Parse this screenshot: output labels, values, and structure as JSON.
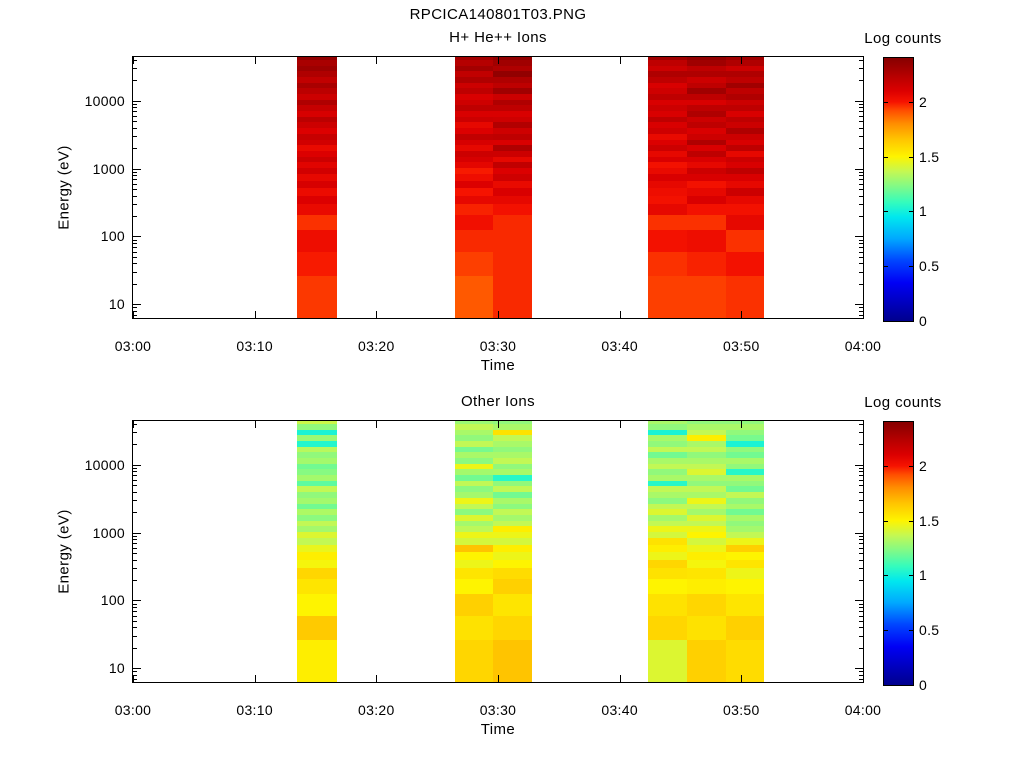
{
  "page_title": "RPCICA140801T03.PNG",
  "colormap": {
    "max_value": 2.4,
    "stops": [
      [
        0.0,
        "#00008d"
      ],
      [
        0.35,
        "#0000f5"
      ],
      [
        0.55,
        "#0045ff"
      ],
      [
        0.75,
        "#00a8ff"
      ],
      [
        0.95,
        "#00e8ee"
      ],
      [
        1.08,
        "#33fcbe"
      ],
      [
        1.22,
        "#7dfa8a"
      ],
      [
        1.36,
        "#c2f855"
      ],
      [
        1.5,
        "#fef400"
      ],
      [
        1.66,
        "#ffc400"
      ],
      [
        1.8,
        "#ff8e00"
      ],
      [
        1.92,
        "#ff4e00"
      ],
      [
        2.0,
        "#f61300"
      ],
      [
        2.1,
        "#dc0000"
      ],
      [
        2.22,
        "#bb0000"
      ],
      [
        2.32,
        "#9d0000"
      ],
      [
        2.4,
        "#870000"
      ]
    ]
  },
  "chart_data": [
    {
      "type": "heatmap",
      "title": "H+ He++ Ions",
      "xlabel": "Time",
      "ylabel": "Energy (eV)",
      "x_tick_labels": [
        "03:00",
        "03:10",
        "03:20",
        "03:30",
        "03:40",
        "03:50",
        "04:00"
      ],
      "x_tick_minutes": [
        0,
        10,
        20,
        30,
        40,
        50,
        60
      ],
      "x_range_minutes": [
        0,
        60
      ],
      "y_scale": "log",
      "y_tick_values_ev": [
        10,
        100,
        1000,
        10000
      ],
      "y_range_ev": [
        6.3,
        44000
      ],
      "colorbar": {
        "title": "Log counts",
        "tick_values": [
          0,
          0.5,
          1,
          1.5,
          2
        ],
        "range": [
          0,
          2.4
        ]
      },
      "energy_bin_edges_ev": [
        6.3,
        26,
        60,
        125,
        210,
        300,
        400,
        520,
        660,
        820,
        1010,
        1230,
        1500,
        1820,
        2210,
        2680,
        3250,
        3940,
        4780,
        5800,
        7030,
        8520,
        10330,
        12520,
        15180,
        18400,
        22300,
        27000,
        32700,
        39600,
        44000
      ],
      "columns": [
        {
          "t_start_min": 13.5,
          "t_end_min": 16.8,
          "log_counts": [
            1.95,
            1.99,
            2.03,
            1.96,
            2.05,
            2.1,
            2.04,
            2.12,
            2.06,
            2.14,
            2.08,
            2.16,
            2.1,
            2.05,
            2.14,
            2.18,
            2.1,
            2.16,
            2.22,
            2.12,
            2.18,
            2.26,
            2.16,
            2.22,
            2.28,
            2.2,
            2.26,
            2.32,
            2.28,
            2.36
          ]
        },
        {
          "t_start_min": 26.5,
          "t_end_min": 29.6,
          "log_counts": [
            1.9,
            1.94,
            1.97,
            2.02,
            1.98,
            2.06,
            2.0,
            2.1,
            2.03,
            1.99,
            2.07,
            2.12,
            2.16,
            2.06,
            2.12,
            2.2,
            2.1,
            2.06,
            2.16,
            2.11,
            2.21,
            2.15,
            2.11,
            2.21,
            2.16,
            2.26,
            2.2,
            2.3,
            2.24,
            2.3
          ]
        },
        {
          "t_start_min": 29.6,
          "t_end_min": 32.8,
          "log_counts": [
            1.97,
            1.97,
            1.97,
            1.97,
            2.01,
            2.06,
            2.11,
            2.05,
            2.15,
            2.1,
            2.2,
            2.06,
            2.16,
            2.26,
            2.11,
            2.21,
            2.15,
            2.25,
            2.15,
            2.11,
            2.21,
            2.26,
            2.16,
            2.31,
            2.21,
            2.26,
            2.36,
            2.26,
            2.31,
            2.36
          ]
        },
        {
          "t_start_min": 42.3,
          "t_end_min": 45.5,
          "log_counts": [
            1.94,
            1.96,
            2.01,
            1.96,
            2.06,
            2.01,
            2.03,
            2.06,
            2.11,
            2.05,
            2.01,
            2.11,
            2.06,
            2.16,
            2.1,
            2.05,
            2.15,
            2.11,
            2.21,
            2.11,
            2.16,
            2.11,
            2.21,
            2.15,
            2.11,
            2.21,
            2.26,
            2.16,
            2.21,
            2.31
          ]
        },
        {
          "t_start_min": 45.5,
          "t_end_min": 48.7,
          "log_counts": [
            1.94,
            1.98,
            2.03,
            1.96,
            2.01,
            2.11,
            2.06,
            2.01,
            2.11,
            2.16,
            2.06,
            2.11,
            2.21,
            2.11,
            2.26,
            2.16,
            2.11,
            2.21,
            2.16,
            2.26,
            2.21,
            2.11,
            2.21,
            2.31,
            2.21,
            2.16,
            2.26,
            2.21,
            2.31,
            2.36
          ]
        },
        {
          "t_start_min": 48.7,
          "t_end_min": 51.9,
          "log_counts": [
            1.96,
            2.01,
            1.96,
            2.06,
            2.01,
            2.06,
            2.16,
            2.06,
            2.11,
            2.21,
            2.11,
            2.16,
            2.06,
            2.21,
            2.11,
            2.16,
            2.26,
            2.16,
            2.21,
            2.11,
            2.21,
            2.16,
            2.26,
            2.21,
            2.31,
            2.21,
            2.26,
            2.16,
            2.26,
            2.31
          ]
        }
      ]
    },
    {
      "type": "heatmap",
      "title": "Other Ions",
      "xlabel": "Time",
      "ylabel": "Energy (eV)",
      "x_tick_labels": [
        "03:00",
        "03:10",
        "03:20",
        "03:30",
        "03:40",
        "03:50",
        "04:00"
      ],
      "x_tick_minutes": [
        0,
        10,
        20,
        30,
        40,
        50,
        60
      ],
      "x_range_minutes": [
        0,
        60
      ],
      "y_scale": "log",
      "y_tick_values_ev": [
        10,
        100,
        1000,
        10000
      ],
      "y_range_ev": [
        6.3,
        44000
      ],
      "colorbar": {
        "title": "Log counts",
        "tick_values": [
          0,
          0.5,
          1,
          1.5,
          2
        ],
        "range": [
          0,
          2.4
        ]
      },
      "energy_bin_edges_ev": [
        6.3,
        26,
        60,
        125,
        210,
        300,
        400,
        520,
        660,
        820,
        1010,
        1230,
        1500,
        1820,
        2210,
        2680,
        3250,
        3940,
        4780,
        5800,
        7030,
        8520,
        10330,
        12520,
        15180,
        18400,
        22300,
        27000,
        32700,
        39600,
        44000
      ],
      "columns": [
        {
          "t_start_min": 13.5,
          "t_end_min": 16.8,
          "log_counts": [
            1.52,
            1.64,
            1.5,
            1.55,
            1.6,
            1.48,
            1.52,
            1.45,
            1.36,
            1.42,
            1.3,
            1.36,
            1.25,
            1.32,
            1.2,
            1.3,
            1.26,
            1.36,
            1.16,
            1.3,
            1.24,
            1.2,
            1.3,
            1.26,
            1.34,
            1.04,
            1.28,
            1.02,
            1.26,
            1.38
          ]
        },
        {
          "t_start_min": 26.5,
          "t_end_min": 29.6,
          "log_counts": [
            1.6,
            1.56,
            1.62,
            1.5,
            1.55,
            1.46,
            1.5,
            1.66,
            1.4,
            1.46,
            1.35,
            1.3,
            1.42,
            1.25,
            1.36,
            1.46,
            1.3,
            1.25,
            1.36,
            1.2,
            1.3,
            1.46,
            1.25,
            1.31,
            1.21,
            1.36,
            1.26,
            1.31,
            1.36,
            1.28
          ]
        },
        {
          "t_start_min": 29.6,
          "t_end_min": 32.8,
          "log_counts": [
            1.66,
            1.6,
            1.55,
            1.62,
            1.58,
            1.5,
            1.46,
            1.52,
            1.4,
            1.46,
            1.52,
            1.36,
            1.3,
            1.36,
            1.25,
            1.31,
            1.2,
            1.36,
            1.26,
            1.05,
            1.31,
            1.26,
            1.36,
            1.31,
            1.26,
            1.31,
            1.36,
            1.56,
            1.31,
            1.26
          ]
        },
        {
          "t_start_min": 42.3,
          "t_end_min": 45.5,
          "log_counts": [
            1.42,
            1.6,
            1.56,
            1.5,
            1.56,
            1.6,
            1.46,
            1.52,
            1.56,
            1.4,
            1.46,
            1.36,
            1.3,
            1.42,
            1.36,
            1.25,
            1.31,
            1.36,
            1.05,
            1.31,
            1.26,
            1.36,
            1.31,
            1.2,
            1.36,
            1.26,
            1.31,
            1.02,
            1.26,
            1.31
          ]
        },
        {
          "t_start_min": 45.5,
          "t_end_min": 48.7,
          "log_counts": [
            1.62,
            1.56,
            1.6,
            1.52,
            1.55,
            1.48,
            1.52,
            1.46,
            1.4,
            1.5,
            1.46,
            1.36,
            1.42,
            1.3,
            1.36,
            1.46,
            1.31,
            1.36,
            1.26,
            1.31,
            1.42,
            1.36,
            1.31,
            1.26,
            1.36,
            1.31,
            1.52,
            1.36,
            1.31,
            1.26
          ]
        },
        {
          "t_start_min": 48.7,
          "t_end_min": 51.9,
          "log_counts": [
            1.58,
            1.62,
            1.55,
            1.5,
            1.46,
            1.55,
            1.5,
            1.62,
            1.46,
            1.36,
            1.3,
            1.26,
            1.31,
            1.2,
            1.31,
            1.26,
            1.36,
            1.2,
            1.26,
            1.31,
            1.05,
            1.26,
            1.31,
            1.2,
            1.26,
            1.02,
            1.21,
            1.26,
            1.31,
            1.26
          ]
        }
      ]
    }
  ]
}
